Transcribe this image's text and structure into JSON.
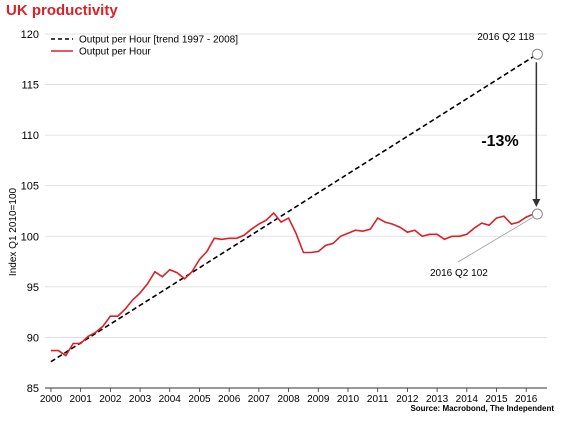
{
  "title": "UK productivity",
  "source": "Source: Macrobond, The Independent",
  "chart_data": {
    "type": "line",
    "ylabel": "Index Q1 2010=100",
    "ylim": [
      85,
      120
    ],
    "yticks": [
      85,
      90,
      95,
      100,
      105,
      110,
      115,
      120
    ],
    "xlim": [
      1999.8,
      2016.7
    ],
    "xticks": [
      2000,
      2001,
      2002,
      2003,
      2004,
      2005,
      2006,
      2007,
      2008,
      2009,
      2010,
      2011,
      2012,
      2013,
      2014,
      2015,
      2016
    ],
    "xtick_labels": [
      "2000",
      "2001",
      "2002",
      "2003",
      "2004",
      "2005",
      "2006",
      "2007",
      "2008",
      "2009",
      "2010",
      "2011",
      "2012",
      "2013",
      "2014",
      "2015",
      "2016"
    ],
    "grid": "horizontal",
    "legend_position": "top-left",
    "series": [
      {
        "name": "Output per Hour [trend 1997 - 2008]",
        "style": "dashed",
        "color": "#000000",
        "x": [
          2000,
          2016.375
        ],
        "y": [
          87.6,
          118
        ]
      },
      {
        "name": "Output per Hour",
        "style": "solid",
        "color": "#d8222a",
        "x": [
          2000.0,
          2000.25,
          2000.5,
          2000.75,
          2001.0,
          2001.25,
          2001.5,
          2001.75,
          2002.0,
          2002.25,
          2002.5,
          2002.75,
          2003.0,
          2003.25,
          2003.5,
          2003.75,
          2004.0,
          2004.25,
          2004.5,
          2004.75,
          2005.0,
          2005.25,
          2005.5,
          2005.75,
          2006.0,
          2006.25,
          2006.5,
          2006.75,
          2007.0,
          2007.25,
          2007.5,
          2007.75,
          2008.0,
          2008.25,
          2008.5,
          2008.75,
          2009.0,
          2009.25,
          2009.5,
          2009.75,
          2010.0,
          2010.25,
          2010.5,
          2010.75,
          2011.0,
          2011.25,
          2011.5,
          2011.75,
          2012.0,
          2012.25,
          2012.5,
          2012.75,
          2013.0,
          2013.25,
          2013.5,
          2013.75,
          2014.0,
          2014.25,
          2014.5,
          2014.75,
          2015.0,
          2015.25,
          2015.5,
          2015.75,
          2016.0,
          2016.25
        ],
        "y": [
          88.7,
          88.7,
          88.2,
          89.4,
          89.4,
          90.1,
          90.5,
          91.1,
          92.1,
          92.1,
          92.8,
          93.7,
          94.4,
          95.3,
          96.5,
          96.0,
          96.7,
          96.4,
          95.8,
          96.5,
          97.7,
          98.5,
          99.8,
          99.7,
          99.8,
          99.8,
          100.1,
          100.7,
          101.2,
          101.6,
          102.3,
          101.4,
          101.8,
          100.3,
          98.4,
          98.4,
          98.5,
          99.1,
          99.3,
          100.0,
          100.3,
          100.6,
          100.5,
          100.7,
          101.8,
          101.4,
          101.2,
          100.9,
          100.4,
          100.6,
          100.0,
          100.2,
          100.2,
          99.7,
          100.0,
          100.0,
          100.2,
          100.8,
          101.3,
          101.1,
          101.8,
          102.0,
          101.2,
          101.4,
          101.9,
          102.2
        ]
      }
    ],
    "annotations": [
      {
        "text": "2016 Q2 118",
        "x": 2016.375,
        "y": 118
      },
      {
        "text": "2016 Q2 102",
        "x": 2016.375,
        "y": 102.2
      },
      {
        "text": "-13%"
      }
    ]
  }
}
